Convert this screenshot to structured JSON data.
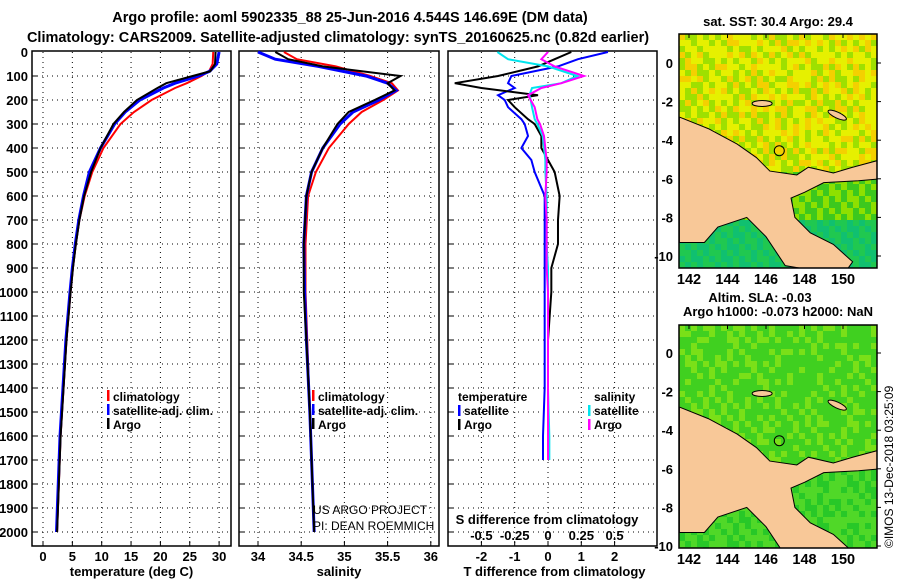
{
  "title_line1": "Argo profile: aoml 5902335_88 25-Jun-2016 4.544S 146.69E (DM data)",
  "title_line2": "Climatology: CARS2009. Satellite-adjusted climatology: synTS_20160625.nc (0.82d earlier)",
  "credit_line1": "US ARGO PROJECT",
  "credit_line2": "PI: DEAN ROEMMICH",
  "timestamp": "©IMOS 13-Dec-2018 03:25:09",
  "colors": {
    "climatology": "#ff0000",
    "satellite": "#0000ff",
    "argo": "#000000",
    "sal_satellite": "#00e5ee",
    "sal_argo": "#ff00ff",
    "ocean_warm": "#e8f000",
    "land": "#f8c898",
    "ocean_green": "#22c022"
  },
  "chart_data": [
    {
      "type": "line",
      "xlabel": "temperature (deg C)",
      "ylabel": "",
      "xlim": [
        -2,
        32
      ],
      "ylim": [
        2070,
        0
      ],
      "xticks": [
        "0",
        "5",
        "10",
        "15",
        "20",
        "25",
        "30"
      ],
      "yticks": [
        "0",
        "100",
        "200",
        "300",
        "400",
        "500",
        "600",
        "700",
        "800",
        "900",
        "1000",
        "1100",
        "1200",
        "1300",
        "1400",
        "1500",
        "1600",
        "1700",
        "1800",
        "1900",
        "2000"
      ],
      "legend": [
        "climatology",
        "satellite-adj. clim.",
        "Argo"
      ],
      "depth": [
        0,
        50,
        80,
        100,
        130,
        150,
        200,
        250,
        300,
        400,
        500,
        600,
        700,
        800,
        900,
        1000,
        1200,
        1400,
        1600,
        1800,
        2000
      ],
      "series": [
        {
          "name": "climatology",
          "values": [
            29.0,
            28.9,
            28.3,
            27.0,
            24.5,
            22.5,
            18.5,
            15.5,
            13.2,
            10.3,
            8.4,
            7.1,
            6.2,
            5.6,
            5.1,
            4.7,
            4.0,
            3.5,
            3.0,
            2.7,
            2.4
          ]
        },
        {
          "name": "satellite-adj. clim.",
          "values": [
            30.0,
            29.6,
            28.4,
            26.5,
            22.5,
            20.5,
            16.5,
            14.0,
            12.2,
            9.8,
            7.9,
            6.9,
            6.1,
            5.5,
            5.0,
            4.6,
            3.9,
            3.4,
            2.9,
            2.6,
            2.3
          ]
        },
        {
          "name": "Argo",
          "values": [
            29.4,
            29.3,
            28.5,
            25.5,
            21.0,
            19.5,
            16.0,
            13.8,
            12.0,
            9.8,
            8.2,
            7.0,
            6.2,
            5.6,
            5.1,
            4.7,
            4.0,
            3.5,
            3.0,
            2.7,
            2.4
          ]
        }
      ]
    },
    {
      "type": "line",
      "xlabel": "salinity",
      "xlim": [
        33.65,
        36.2
      ],
      "ylim": [
        2070,
        0
      ],
      "xticks": [
        "34",
        "34.5",
        "35",
        "35.5",
        "36"
      ],
      "legend": [
        "climatology",
        "satellite-adj. clim.",
        "Argo"
      ],
      "depth": [
        0,
        30,
        60,
        100,
        130,
        160,
        200,
        250,
        300,
        400,
        500,
        600,
        800,
        1000,
        1200,
        1500,
        1800,
        2000
      ],
      "series": [
        {
          "name": "climatology",
          "values": [
            34.3,
            34.45,
            34.9,
            35.3,
            35.55,
            35.62,
            35.45,
            35.2,
            35.05,
            34.82,
            34.67,
            34.58,
            34.55,
            34.55,
            34.57,
            34.6,
            34.63,
            34.65
          ]
        },
        {
          "name": "satellite-adj. clim.",
          "values": [
            34.0,
            34.2,
            34.7,
            35.25,
            35.5,
            35.6,
            35.4,
            35.1,
            34.95,
            34.75,
            34.62,
            34.56,
            34.53,
            34.54,
            34.56,
            34.6,
            34.63,
            34.65
          ]
        },
        {
          "name": "Argo",
          "values": [
            34.2,
            34.35,
            34.75,
            35.65,
            35.5,
            35.58,
            35.35,
            35.05,
            34.92,
            34.75,
            34.62,
            34.56,
            34.53,
            34.53,
            34.56,
            34.6,
            34.63,
            34.65
          ]
        }
      ]
    },
    {
      "type": "line",
      "xlabel": "T difference from climatology",
      "x2label": "S difference from climatology",
      "xlim": [
        -3,
        3.3
      ],
      "ylim": [
        2070,
        0
      ],
      "xticks": [
        "-2",
        "-1",
        "0",
        "1",
        "2"
      ],
      "x2ticks": [
        "-0.5",
        "-0.25",
        "0",
        "0.25",
        "0.5"
      ],
      "legend_temperature_title": "temperature",
      "legend_salinity_title": "salinity",
      "legend": [
        "satellite",
        "Argo",
        "satellite",
        "Argo"
      ],
      "depth": [
        0,
        30,
        60,
        100,
        130,
        150,
        180,
        200,
        230,
        280,
        300,
        350,
        400,
        450,
        500,
        600,
        700,
        800,
        900,
        1000,
        1200,
        1400,
        1600,
        1700
      ],
      "series": [
        {
          "name": "T satellite",
          "values": [
            1.8,
            0.9,
            0.3,
            -1.1,
            -1.2,
            -1.0,
            -1.5,
            -1.3,
            -1.2,
            -0.8,
            -0.7,
            -0.6,
            -0.8,
            -0.5,
            -0.4,
            -0.1,
            -0.1,
            -0.1,
            -0.1,
            -0.1,
            -0.1,
            -0.1,
            -0.15,
            -0.15
          ]
        },
        {
          "name": "T Argo",
          "values": [
            0.7,
            0.2,
            -0.3,
            -1.5,
            -2.8,
            -2.0,
            -0.3,
            -1.2,
            -1.0,
            -0.6,
            -0.4,
            -0.2,
            -0.2,
            0.0,
            0.2,
            0.35,
            0.3,
            0.3,
            0.1,
            0.1,
            0.0,
            0.0,
            0.0,
            0.0
          ]
        },
        {
          "name": "S satellite",
          "values": [
            -0.38,
            -0.3,
            0.0,
            0.22,
            0.1,
            -0.12,
            -0.14,
            -0.13,
            -0.12,
            -0.1,
            -0.08,
            -0.04,
            -0.03,
            -0.02,
            -0.02,
            -0.01,
            -0.01,
            -0.01,
            0.0,
            0.0,
            0.0,
            0.0,
            0.01,
            0.01
          ]
        },
        {
          "name": "S Argo",
          "values": [
            0.0,
            -0.05,
            0.05,
            0.27,
            0.1,
            -0.05,
            -0.15,
            -0.13,
            -0.1,
            -0.08,
            -0.06,
            -0.03,
            -0.02,
            -0.01,
            -0.01,
            -0.02,
            -0.01,
            -0.01,
            -0.01,
            0.0,
            0.0,
            0.0,
            0.0,
            0.0
          ]
        }
      ]
    }
  ],
  "maps": [
    {
      "title": "sat. SST: 30.4 Argo: 29.4",
      "xticks": [
        "142",
        "144",
        "146",
        "148",
        "150"
      ],
      "yticks": [
        "0",
        "-2",
        "-4",
        "-6",
        "-8",
        "-10"
      ]
    },
    {
      "title_line1": "Altim. SLA: -0.03",
      "title_line2": "Argo h1000: -0.073 h2000: NaN",
      "xticks": [
        "142",
        "144",
        "146",
        "148",
        "150"
      ],
      "yticks": [
        "0",
        "-2",
        "-4",
        "-6",
        "-8",
        "-10"
      ]
    }
  ]
}
